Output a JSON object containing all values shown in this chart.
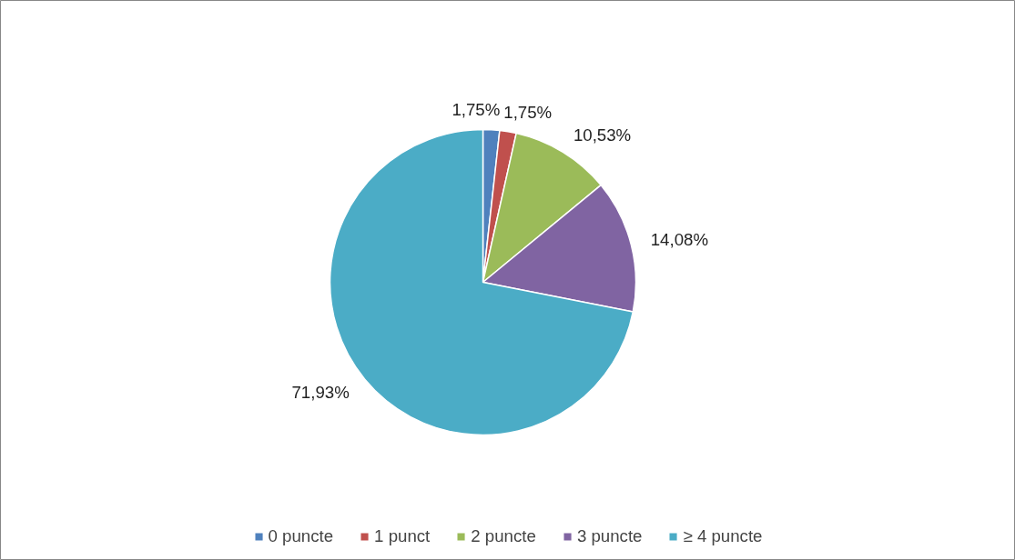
{
  "chart_data": {
    "type": "pie",
    "categories": [
      "0 puncte",
      "1 punct",
      "2 puncte",
      "3 puncte",
      "≥ 4 puncte"
    ],
    "values": [
      1.75,
      1.75,
      10.53,
      14.08,
      71.93
    ],
    "value_labels": [
      "1,75%",
      "1,75%",
      "10,53%",
      "14,08%",
      "71,93%"
    ],
    "colors": [
      "#4f81bd",
      "#c0504d",
      "#9bbb59",
      "#8064a2",
      "#4bacc6"
    ],
    "legend": "bottom"
  }
}
